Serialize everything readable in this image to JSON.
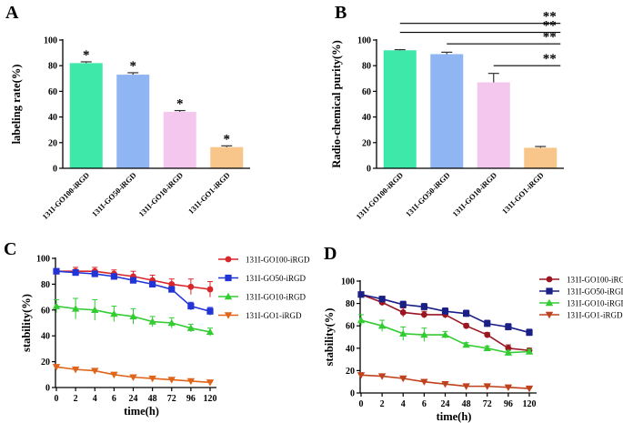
{
  "panels": {
    "A": "A",
    "B": "B",
    "C": "C",
    "D": "D"
  },
  "colors": {
    "GO100": "#3de8a8",
    "GO50": "#8fb6f2",
    "GO10": "#f4c7ef",
    "GO1": "#f8c68a",
    "line_GO100_C": "#d9262a",
    "line_GO50_C": "#2234d6",
    "line_GO10": "#33cc33",
    "line_GO1": "#e0651a",
    "line_GO100_D": "#9b1620",
    "line_GO50_D": "#1a1f86",
    "line_GO1_D": "#c0421d"
  },
  "chart_data": [
    {
      "type": "bar",
      "panel": "A",
      "ylabel": "labeling rate(%)",
      "ylim": [
        0,
        100
      ],
      "yticks": [
        0,
        20,
        40,
        60,
        80,
        100
      ],
      "categories": [
        "131I-GO100-iRGD",
        "131I-GO50-iRGD",
        "131I-GO10-iRGD",
        "131I-GO1-iRGD"
      ],
      "values": [
        82,
        73,
        44,
        16.5
      ],
      "errors": [
        1,
        1.5,
        1,
        1
      ],
      "annotations": [
        "*",
        "*",
        "*",
        "*"
      ]
    },
    {
      "type": "bar",
      "panel": "B",
      "ylabel": "Radio-chemical purity(%)",
      "ylim": [
        0,
        100
      ],
      "yticks": [
        0,
        20,
        40,
        60,
        80,
        100
      ],
      "categories": [
        "131I-GO100-iRGD",
        "131I-GO50-iRGD",
        "131I-GO10-iRGD",
        "131I-GO1-iRGD"
      ],
      "values": [
        92,
        89,
        67,
        16
      ],
      "errors": [
        0.5,
        1.5,
        7,
        1
      ],
      "significance": [
        {
          "from": 0,
          "to": 3,
          "y": 113,
          "label": "**"
        },
        {
          "from": 0,
          "to": 3,
          "y": 106,
          "label": "**"
        },
        {
          "from": 1,
          "to": 3,
          "y": 97,
          "label": "**"
        },
        {
          "from": 2,
          "to": 3,
          "y": 80,
          "label": "**"
        }
      ]
    },
    {
      "type": "line",
      "panel": "C",
      "xlabel": "time(h)",
      "ylabel": "stability(%)",
      "x": [
        "0",
        "2",
        "4",
        "6",
        "24",
        "48",
        "72",
        "96",
        "120"
      ],
      "ylim": [
        0,
        100
      ],
      "yticks": [
        0,
        20,
        40,
        60,
        80,
        100
      ],
      "series": [
        {
          "name": "131I-GO100-iRGD",
          "marker": "circle",
          "values": [
            90,
            90,
            90,
            88,
            86,
            83,
            80,
            78,
            76
          ],
          "errors": [
            2,
            3,
            3,
            3,
            4,
            4,
            4,
            6,
            6
          ]
        },
        {
          "name": "131I-GO50-iRGD",
          "marker": "square",
          "values": [
            90,
            89,
            88,
            86,
            83,
            80,
            76,
            63,
            59
          ],
          "errors": [
            1,
            2,
            2,
            2,
            2,
            2,
            2,
            3,
            3
          ]
        },
        {
          "name": "131I-GO10-iRGD",
          "marker": "triangle-up",
          "values": [
            63,
            61,
            60,
            57,
            55,
            51,
            50,
            46,
            43
          ],
          "errors": [
            5,
            8,
            8,
            6,
            6,
            4,
            4,
            3,
            3
          ]
        },
        {
          "name": "131I-GO1-iRGD",
          "marker": "triangle-down",
          "values": [
            16,
            14,
            13,
            10,
            8,
            7,
            6,
            5,
            4
          ],
          "errors": [
            0.5,
            0.5,
            0.5,
            0.5,
            0.5,
            0.5,
            0.5,
            0.5,
            0.5
          ]
        }
      ]
    },
    {
      "type": "line",
      "panel": "D",
      "xlabel": "time(h)",
      "ylabel": "stability(%)",
      "x": [
        "0",
        "2",
        "4",
        "6",
        "24",
        "48",
        "72",
        "96",
        "120"
      ],
      "ylim": [
        0,
        100
      ],
      "yticks": [
        0,
        20,
        40,
        60,
        80,
        100
      ],
      "series": [
        {
          "name": "131I-GO100-iRGD",
          "marker": "circle",
          "values": [
            88,
            81,
            72,
            70,
            70,
            60,
            52,
            40,
            38
          ],
          "errors": [
            2,
            3,
            4,
            3,
            3,
            2,
            2,
            3,
            2
          ]
        },
        {
          "name": "131I-GO50-iRGD",
          "marker": "square",
          "values": [
            88,
            84,
            79,
            77,
            73,
            71,
            62,
            59,
            54
          ],
          "errors": [
            2,
            2,
            3,
            3,
            3,
            3,
            3,
            3,
            3
          ]
        },
        {
          "name": "131I-GO10-iRGD",
          "marker": "triangle-up",
          "values": [
            65,
            60,
            53,
            52,
            52,
            43,
            40,
            36,
            37
          ],
          "errors": [
            5,
            5,
            6,
            6,
            3,
            2,
            2,
            2,
            2
          ]
        },
        {
          "name": "131I-GO1-iRGD",
          "marker": "triangle-down",
          "values": [
            16,
            15,
            13,
            10,
            8,
            6,
            6,
            5,
            4
          ],
          "errors": [
            0.5,
            0.5,
            0.5,
            0.5,
            0.5,
            0.5,
            0.5,
            0.5,
            0.5
          ]
        }
      ]
    }
  ]
}
